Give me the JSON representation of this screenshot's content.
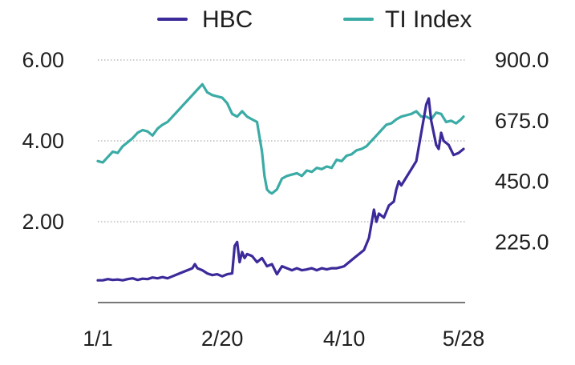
{
  "chart_data": {
    "type": "line",
    "title": "",
    "xlabel": "",
    "ylabel_left": "",
    "ylabel_right": "",
    "x_ticks": [
      "1/1",
      "2/20",
      "4/10",
      "5/28"
    ],
    "y_left": {
      "ticks": [
        "2.00",
        "4.00",
        "6.00"
      ],
      "tick_values": [
        2,
        4,
        6
      ],
      "range": [
        0,
        6
      ]
    },
    "y_right": {
      "ticks": [
        "225.0",
        "450.0",
        "675.0",
        "900.0"
      ],
      "tick_values": [
        225,
        450,
        675,
        900
      ],
      "range": [
        0,
        900
      ]
    },
    "grid": "horizontal dotted",
    "legend_position": "top",
    "series": [
      {
        "name": "HBC",
        "axis": "left",
        "color": "#3b2a9a",
        "points": [
          [
            "1/1",
            0.55
          ],
          [
            "1/3",
            0.55
          ],
          [
            "1/5",
            0.58
          ],
          [
            "1/7",
            0.56
          ],
          [
            "1/9",
            0.57
          ],
          [
            "1/11",
            0.55
          ],
          [
            "1/13",
            0.58
          ],
          [
            "1/15",
            0.6
          ],
          [
            "1/17",
            0.56
          ],
          [
            "1/19",
            0.59
          ],
          [
            "1/21",
            0.58
          ],
          [
            "1/23",
            0.62
          ],
          [
            "1/25",
            0.6
          ],
          [
            "1/27",
            0.63
          ],
          [
            "1/29",
            0.6
          ],
          [
            "1/31",
            0.65
          ],
          [
            "2/2",
            0.7
          ],
          [
            "2/4",
            0.75
          ],
          [
            "2/6",
            0.8
          ],
          [
            "2/8",
            0.85
          ],
          [
            "2/9",
            0.95
          ],
          [
            "2/10",
            0.85
          ],
          [
            "2/12",
            0.8
          ],
          [
            "2/14",
            0.72
          ],
          [
            "2/16",
            0.68
          ],
          [
            "2/18",
            0.7
          ],
          [
            "2/20",
            0.65
          ],
          [
            "2/22",
            0.7
          ],
          [
            "2/24",
            0.72
          ],
          [
            "2/25",
            1.4
          ],
          [
            "2/26",
            1.5
          ],
          [
            "2/27",
            1.0
          ],
          [
            "2/28",
            1.25
          ],
          [
            "3/1",
            1.1
          ],
          [
            "3/2",
            1.2
          ],
          [
            "3/4",
            1.15
          ],
          [
            "3/6",
            1.0
          ],
          [
            "3/8",
            1.1
          ],
          [
            "3/10",
            0.9
          ],
          [
            "3/12",
            0.95
          ],
          [
            "3/14",
            0.7
          ],
          [
            "3/16",
            0.9
          ],
          [
            "3/18",
            0.85
          ],
          [
            "3/20",
            0.8
          ],
          [
            "3/22",
            0.85
          ],
          [
            "3/24",
            0.8
          ],
          [
            "3/26",
            0.82
          ],
          [
            "3/28",
            0.85
          ],
          [
            "3/30",
            0.8
          ],
          [
            "4/1",
            0.85
          ],
          [
            "4/3",
            0.82
          ],
          [
            "4/5",
            0.85
          ],
          [
            "4/7",
            0.85
          ],
          [
            "4/9",
            0.88
          ],
          [
            "4/10",
            0.9
          ],
          [
            "4/12",
            1.0
          ],
          [
            "4/14",
            1.1
          ],
          [
            "4/16",
            1.2
          ],
          [
            "4/18",
            1.3
          ],
          [
            "4/20",
            1.6
          ],
          [
            "4/22",
            2.3
          ],
          [
            "4/23",
            2.0
          ],
          [
            "4/24",
            2.2
          ],
          [
            "4/26",
            2.1
          ],
          [
            "4/28",
            2.4
          ],
          [
            "4/30",
            2.5
          ],
          [
            "5/1",
            2.8
          ],
          [
            "5/2",
            3.0
          ],
          [
            "5/3",
            2.9
          ],
          [
            "5/5",
            3.1
          ],
          [
            "5/7",
            3.3
          ],
          [
            "5/9",
            3.5
          ],
          [
            "5/11",
            4.2
          ],
          [
            "5/13",
            4.9
          ],
          [
            "5/14",
            5.05
          ],
          [
            "5/15",
            4.5
          ],
          [
            "5/17",
            3.9
          ],
          [
            "5/18",
            3.8
          ],
          [
            "5/19",
            4.2
          ],
          [
            "5/20",
            4.0
          ],
          [
            "5/22",
            3.9
          ],
          [
            "5/24",
            3.65
          ],
          [
            "5/26",
            3.7
          ],
          [
            "5/28",
            3.8
          ]
        ]
      },
      {
        "name": "TI Index",
        "axis": "right",
        "color": "#3aaba5",
        "points": [
          [
            "1/1",
            525
          ],
          [
            "1/3",
            520
          ],
          [
            "1/5",
            540
          ],
          [
            "1/7",
            560
          ],
          [
            "1/9",
            555
          ],
          [
            "1/11",
            580
          ],
          [
            "1/13",
            595
          ],
          [
            "1/15",
            610
          ],
          [
            "1/17",
            630
          ],
          [
            "1/19",
            640
          ],
          [
            "1/21",
            635
          ],
          [
            "1/23",
            620
          ],
          [
            "1/25",
            645
          ],
          [
            "1/27",
            660
          ],
          [
            "1/29",
            670
          ],
          [
            "1/31",
            690
          ],
          [
            "2/2",
            710
          ],
          [
            "2/4",
            730
          ],
          [
            "2/6",
            750
          ],
          [
            "2/8",
            770
          ],
          [
            "2/10",
            790
          ],
          [
            "2/12",
            810
          ],
          [
            "2/14",
            780
          ],
          [
            "2/16",
            770
          ],
          [
            "2/18",
            765
          ],
          [
            "2/20",
            760
          ],
          [
            "2/22",
            740
          ],
          [
            "2/24",
            700
          ],
          [
            "2/26",
            690
          ],
          [
            "2/28",
            710
          ],
          [
            "3/2",
            690
          ],
          [
            "3/4",
            680
          ],
          [
            "3/6",
            670
          ],
          [
            "3/8",
            560
          ],
          [
            "3/9",
            470
          ],
          [
            "3/10",
            420
          ],
          [
            "3/11",
            410
          ],
          [
            "3/12",
            405
          ],
          [
            "3/14",
            420
          ],
          [
            "3/16",
            460
          ],
          [
            "3/18",
            470
          ],
          [
            "3/20",
            475
          ],
          [
            "3/22",
            480
          ],
          [
            "3/24",
            470
          ],
          [
            "3/26",
            490
          ],
          [
            "3/28",
            485
          ],
          [
            "3/30",
            500
          ],
          [
            "4/1",
            495
          ],
          [
            "4/3",
            505
          ],
          [
            "4/5",
            500
          ],
          [
            "4/7",
            530
          ],
          [
            "4/9",
            525
          ],
          [
            "4/11",
            545
          ],
          [
            "4/13",
            550
          ],
          [
            "4/15",
            565
          ],
          [
            "4/17",
            570
          ],
          [
            "4/19",
            580
          ],
          [
            "4/21",
            600
          ],
          [
            "4/23",
            620
          ],
          [
            "4/25",
            640
          ],
          [
            "4/27",
            660
          ],
          [
            "4/29",
            665
          ],
          [
            "5/1",
            680
          ],
          [
            "5/3",
            690
          ],
          [
            "5/5",
            695
          ],
          [
            "5/7",
            700
          ],
          [
            "5/9",
            710
          ],
          [
            "5/11",
            690
          ],
          [
            "5/13",
            690
          ],
          [
            "5/15",
            680
          ],
          [
            "5/17",
            705
          ],
          [
            "5/19",
            700
          ],
          [
            "5/21",
            670
          ],
          [
            "5/23",
            675
          ],
          [
            "5/25",
            665
          ],
          [
            "5/27",
            680
          ],
          [
            "5/28",
            690
          ]
        ]
      }
    ]
  }
}
